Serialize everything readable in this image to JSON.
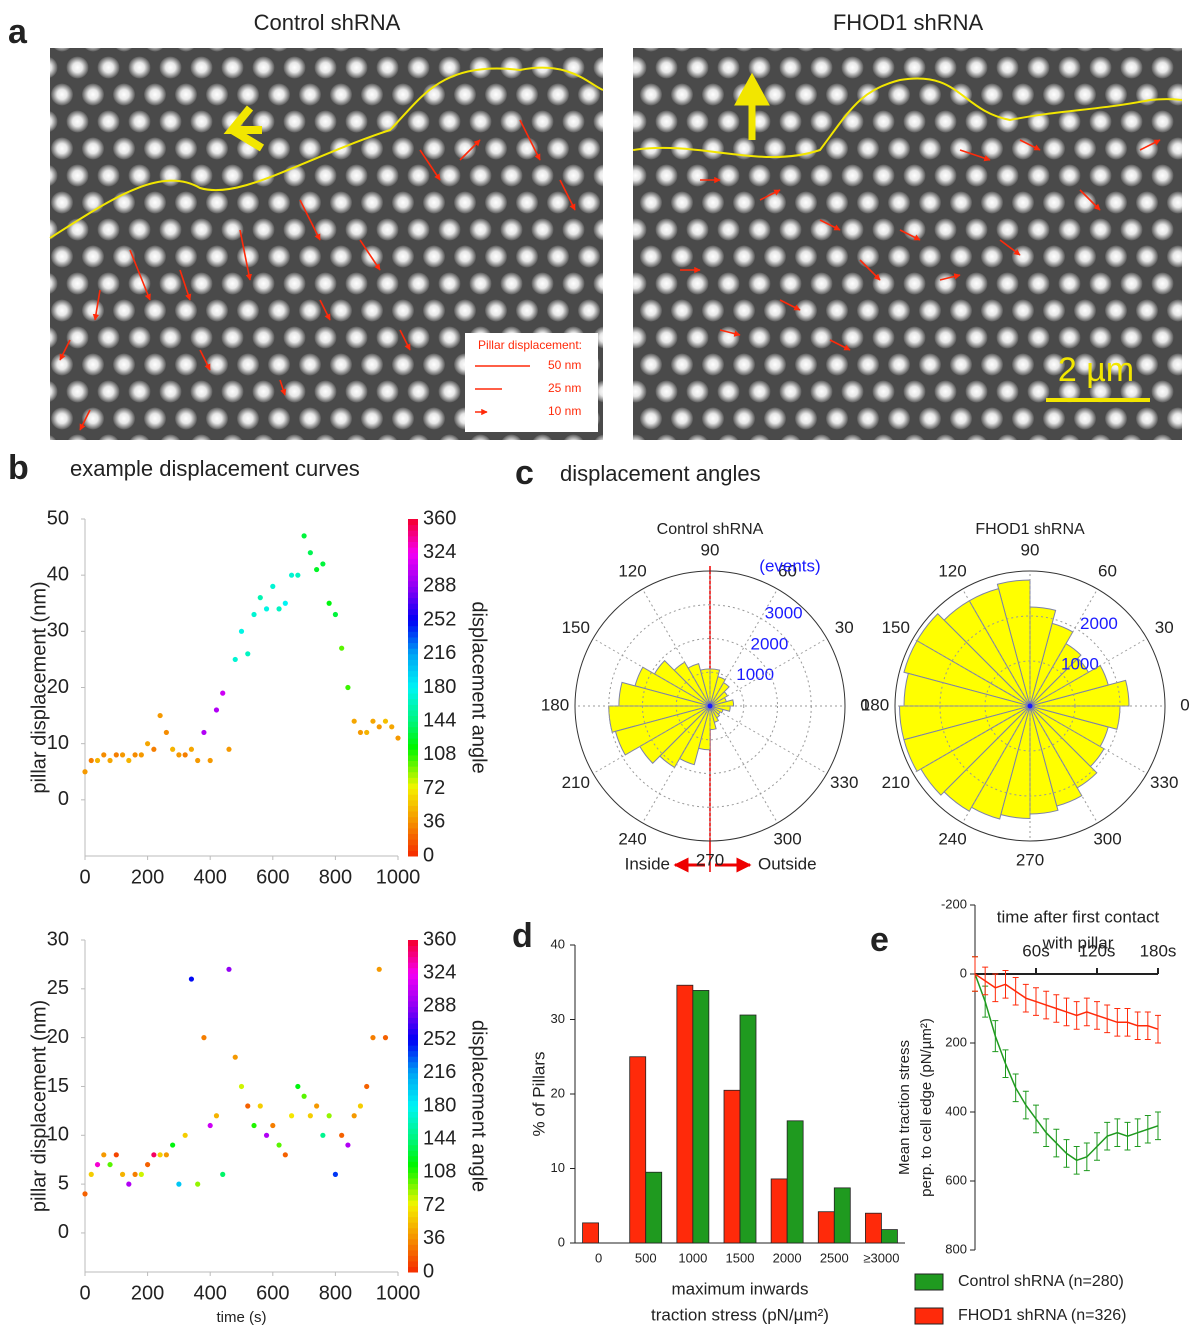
{
  "panel_labels": [
    "a",
    "b",
    "c",
    "d",
    "e"
  ],
  "panel_a": {
    "titles": [
      "Control shRNA",
      "FHOD1 shRNA"
    ],
    "legend_title": "Pillar displacement:",
    "legend_items": [
      "50 nm",
      "25 nm",
      "10 nm"
    ],
    "scale_bar": "2 µm"
  },
  "chart_data": [
    {
      "type": "scatter",
      "title": "example displacement curves",
      "ylabel": "pillar displacement (nm)",
      "colorbar_label": "displacement angle",
      "colormap": "hsv",
      "x": [
        0,
        20,
        40,
        60,
        80,
        100,
        120,
        140,
        160,
        180,
        200,
        220,
        240,
        260,
        280,
        300,
        320,
        340,
        360,
        380,
        400,
        420,
        440,
        460,
        480,
        500,
        520,
        540,
        560,
        580,
        600,
        620,
        640,
        660,
        680,
        700,
        720,
        740,
        760,
        780,
        800,
        820,
        840,
        860,
        880,
        900,
        920,
        940,
        960,
        980,
        1000
      ],
      "values": [
        5,
        7,
        7,
        8,
        7,
        8,
        8,
        7,
        8,
        8,
        10,
        9,
        15,
        12,
        9,
        8,
        8,
        9,
        7,
        12,
        7,
        16,
        19,
        9,
        25,
        30,
        26,
        33,
        36,
        34,
        38,
        34,
        35,
        40,
        40,
        47,
        44,
        41,
        42,
        35,
        33,
        27,
        20,
        14,
        12,
        12,
        14,
        13,
        14,
        13,
        11
      ],
      "angles": [
        40,
        30,
        50,
        35,
        45,
        30,
        40,
        50,
        35,
        40,
        45,
        30,
        40,
        35,
        50,
        40,
        30,
        45,
        40,
        300,
        40,
        300,
        310,
        40,
        170,
        175,
        165,
        170,
        160,
        175,
        170,
        165,
        180,
        170,
        165,
        130,
        135,
        125,
        130,
        120,
        130,
        100,
        105,
        45,
        40,
        50,
        45,
        40,
        55,
        45,
        40
      ],
      "xlim": [
        0,
        1000
      ],
      "xticks": [
        0,
        200,
        400,
        600,
        800,
        1000
      ],
      "ylim": [
        -10,
        50
      ],
      "yticks": [
        0,
        10,
        20,
        30,
        40,
        50
      ],
      "clim": [
        0,
        360
      ],
      "cticks": [
        0,
        36,
        72,
        108,
        144,
        180,
        216,
        252,
        288,
        324,
        360
      ]
    },
    {
      "type": "scatter",
      "ylabel": "pillar displacement (nm)",
      "xlabel": "time (s)",
      "colorbar_label": "displacement angle",
      "colormap": "hsv",
      "x": [
        0,
        20,
        40,
        60,
        80,
        100,
        120,
        140,
        160,
        180,
        200,
        220,
        240,
        260,
        280,
        300,
        320,
        340,
        360,
        380,
        400,
        420,
        440,
        460,
        480,
        500,
        520,
        540,
        560,
        580,
        600,
        620,
        640,
        660,
        680,
        700,
        720,
        740,
        760,
        780,
        800,
        820,
        840,
        860,
        880,
        900,
        920,
        940,
        960
      ],
      "values": [
        4,
        6,
        7,
        8,
        7,
        8,
        6,
        5,
        6,
        6,
        7,
        8,
        8,
        8,
        9,
        5,
        10,
        26,
        5,
        20,
        11,
        12,
        6,
        27,
        18,
        15,
        13,
        11,
        13,
        10,
        11,
        9,
        8,
        12,
        15,
        14,
        12,
        13,
        10,
        12,
        6,
        10,
        9,
        12,
        13,
        15,
        20,
        27,
        20
      ],
      "angles": [
        20,
        60,
        330,
        40,
        100,
        10,
        50,
        300,
        30,
        80,
        20,
        350,
        60,
        40,
        120,
        200,
        60,
        250,
        90,
        30,
        310,
        50,
        140,
        290,
        40,
        80,
        20,
        110,
        60,
        300,
        30,
        100,
        20,
        70,
        120,
        100,
        60,
        40,
        150,
        90,
        240,
        20,
        300,
        40,
        60,
        20,
        30,
        40,
        20
      ],
      "xlim": [
        0,
        1000
      ],
      "xticks": [
        0,
        200,
        400,
        600,
        800,
        1000
      ],
      "ylim": [
        -4,
        30
      ],
      "yticks": [
        0,
        5,
        10,
        15,
        20,
        25,
        30
      ],
      "clim": [
        0,
        360
      ],
      "cticks": [
        0,
        36,
        72,
        108,
        144,
        180,
        216,
        252,
        288,
        324,
        360
      ]
    },
    {
      "type": "polar_bar",
      "title": "displacement angles",
      "subtitle": "Control shRNA",
      "radial_label": "(events)",
      "annotations": [
        "Inside",
        "Outside"
      ],
      "color": "#ffff00",
      "values": [
        700,
        500,
        600,
        800,
        900,
        1100,
        1100,
        1300,
        1500,
        1900,
        2300,
        2700,
        3000,
        2900,
        2400,
        2100,
        1800,
        1300,
        700,
        500,
        400,
        350,
        400,
        600
      ],
      "rlim": [
        0,
        4000
      ],
      "rticks": [
        1000,
        2000,
        3000
      ],
      "theta_ticks": [
        0,
        30,
        60,
        90,
        120,
        150,
        180,
        210,
        240,
        270,
        300,
        330
      ]
    },
    {
      "type": "polar_bar",
      "subtitle": "FHOD1 shRNA",
      "color": "#ffff00",
      "values": [
        2200,
        1800,
        1500,
        1600,
        1900,
        2200,
        2800,
        2700,
        2700,
        2900,
        2900,
        2800,
        2900,
        2900,
        2800,
        2700,
        2600,
        2500,
        2400,
        2300,
        2100,
        1900,
        1800,
        2000
      ],
      "rlim": [
        0,
        3000
      ],
      "rticks": [
        1000,
        2000
      ],
      "theta_ticks": [
        0,
        30,
        60,
        90,
        120,
        150,
        180,
        210,
        240,
        270,
        300,
        330
      ]
    },
    {
      "type": "bar",
      "ylabel": "% of Pillars",
      "xlabel": [
        "maximum inwards",
        "traction stress (pN/µm²)"
      ],
      "categories": [
        "0",
        "500",
        "1000",
        "1500",
        "2000",
        "2500",
        "≥3000"
      ],
      "series": [
        {
          "color": "#ff2a0a",
          "values": [
            2.7,
            25,
            34.6,
            20.5,
            8.6,
            4.2,
            4.0
          ]
        },
        {
          "color": "#1f9a1f",
          "values": [
            null,
            9.5,
            33.9,
            30.6,
            16.4,
            7.4,
            1.8
          ]
        }
      ],
      "ylim": [
        0,
        40
      ],
      "yticks": [
        0,
        10,
        20,
        30,
        40
      ]
    },
    {
      "type": "line",
      "ylabel": [
        "Mean  traction stress",
        "perp. to cell edge  (pN/µm²)"
      ],
      "xlabel": [
        "time after first contact",
        "with pillar"
      ],
      "x": [
        0,
        10,
        20,
        30,
        40,
        50,
        60,
        70,
        80,
        90,
        100,
        110,
        120,
        130,
        140,
        150,
        160,
        170,
        180
      ],
      "series": [
        {
          "name": "Control shRNA (n=280)",
          "color": "#1f9a1f",
          "values": [
            0,
            80,
            180,
            260,
            330,
            380,
            420,
            460,
            490,
            520,
            540,
            530,
            500,
            470,
            460,
            470,
            460,
            450,
            440
          ],
          "errors": [
            50,
            45,
            45,
            40,
            40,
            40,
            40,
            40,
            40,
            40,
            40,
            40,
            40,
            40,
            40,
            40,
            40,
            40,
            40
          ]
        },
        {
          "name": "FHOD1 shRNA (n=326)",
          "color": "#ff2a0a",
          "values": [
            0,
            20,
            40,
            30,
            50,
            70,
            80,
            90,
            100,
            110,
            120,
            110,
            120,
            130,
            140,
            140,
            150,
            150,
            160
          ],
          "errors": [
            50,
            40,
            40,
            40,
            40,
            40,
            40,
            40,
            40,
            40,
            40,
            40,
            40,
            40,
            40,
            40,
            40,
            40,
            40
          ]
        }
      ],
      "xlim": [
        0,
        180
      ],
      "xticks": [
        {
          "value": 60,
          "label": "60s"
        },
        {
          "value": 120,
          "label": "120s"
        },
        {
          "value": 180,
          "label": "180s"
        }
      ],
      "ylim": [
        800,
        -200
      ],
      "yticks": [
        -200,
        0,
        200,
        400,
        600,
        800
      ]
    }
  ]
}
